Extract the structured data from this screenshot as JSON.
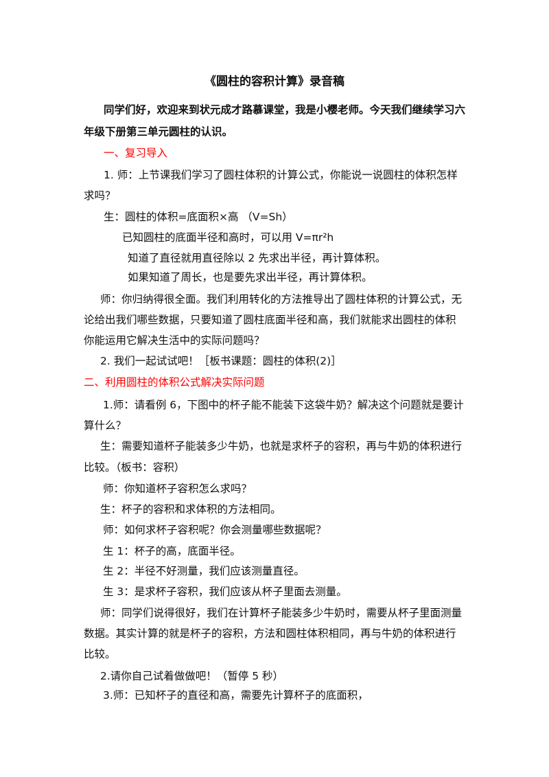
{
  "title": "《圆柱的容积计算》录音稿",
  "intro": [
    "同学们好，欢迎来到状元成才路慕课堂，我是小樱老师。今天我们继续学习六",
    "年级下册第三单元圆柱的认识。"
  ],
  "section1": "一、复习导入",
  "lines1": [
    "1. 师：上节课我们学习了圆柱体积的计算公式，你能说一说圆柱的体积怎样",
    "求吗？",
    "生：圆柱的体积=底面积×高 （V=Sh）",
    "已知圆柱的底面半径和高时，可以用 V=πr²h",
    "知道了直径就用直径除以 2 先求出半径，再计算体积。",
    "如果知道了周长，也是要先求出半径，再计算体积。",
    "师：你归纳得很全面。我们利用转化的方法推导出了圆柱体积的计算公式，无",
    "论给出我们哪些数据，只要知道了圆柱底面半径和高，我们就能求出圆柱的体积",
    "你能运用它解决生活中的实际问题吗？",
    "2. 我们一起试试吧！［板书课题：圆柱的体积(2)］"
  ],
  "section2": "二、利用圆柱的体积公式解决实际问题",
  "lines2": [
    "1.师：请看例 6，下图中的杯子能不能装下这袋牛奶？解决这个问题就是要计",
    "算什么？",
    "生：需要知道杯子能装多少牛奶，也就是求杯子的容积，再与牛奶的体积进行",
    "比较。（板书：容积）",
    "师：你知道杯子容积怎么求吗？",
    "生：杯子的容积和求体积的方法相同。",
    "师：如何求杯子容积呢？你会测量哪些数据呢？",
    "生 1：杯子的高，底面半径。",
    "生 2：半径不好测量，我们应该测量直径。",
    "生 3：是求杯子容积，我们应该从杯子里面去测量。",
    "师：同学们说得很好，我们在计算杯子能装多少牛奶时，需要从杯子里面测量",
    "数据。其实计算的就是杯子的容积，方法和圆柱体积相同，再与牛奶的体积进行",
    "比较。",
    "2.请你自己试着做做吧！（暂停 5 秒）",
    "3.师：已知杯子的直径和高，需要先计算杯子的底面积，"
  ],
  "colors": {
    "heading": "#ff0000",
    "text": "#111111"
  }
}
